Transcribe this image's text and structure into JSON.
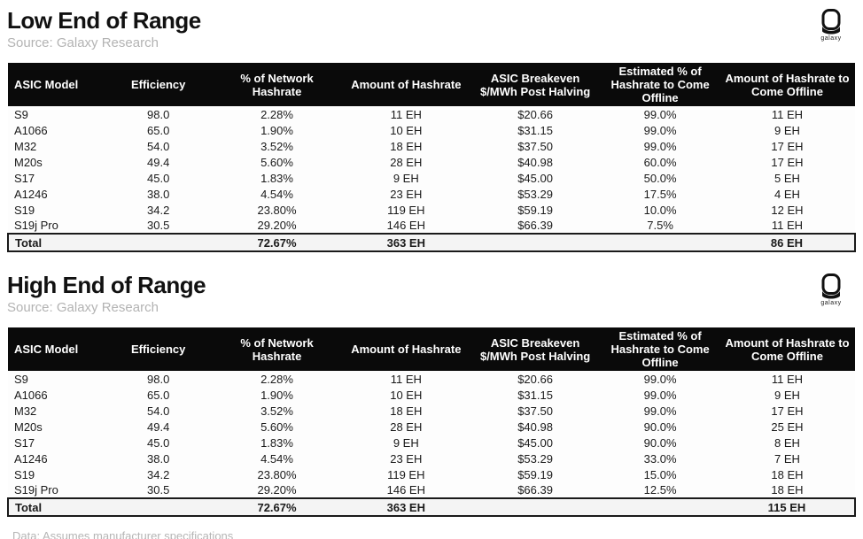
{
  "logo": {
    "icon": "astronaut-helmet-icon",
    "label": "galaxy"
  },
  "footer": {
    "note": "Data: Assumes manufacturer specifications"
  },
  "chart_data": [
    {
      "type": "table",
      "title": "Low End of Range",
      "source": "Source: Galaxy Research",
      "columns": [
        "ASIC Model",
        "Efficiency",
        "% of Network Hashrate",
        "Amount of Hashrate",
        "ASIC Breakeven $/MWh Post Halving",
        "Estimated % of Hashrate to Come Offline",
        "Amount of Hashrate to Come Offline"
      ],
      "rows": [
        [
          "S9",
          "98.0",
          "2.28%",
          "11 EH",
          "$20.66",
          "99.0%",
          "11 EH"
        ],
        [
          "A1066",
          "65.0",
          "1.90%",
          "10 EH",
          "$31.15",
          "99.0%",
          "9 EH"
        ],
        [
          "M32",
          "54.0",
          "3.52%",
          "18 EH",
          "$37.50",
          "99.0%",
          "17 EH"
        ],
        [
          "M20s",
          "49.4",
          "5.60%",
          "28 EH",
          "$40.98",
          "60.0%",
          "17 EH"
        ],
        [
          "S17",
          "45.0",
          "1.83%",
          "9 EH",
          "$45.00",
          "50.0%",
          "5 EH"
        ],
        [
          "A1246",
          "38.0",
          "4.54%",
          "23 EH",
          "$53.29",
          "17.5%",
          "4 EH"
        ],
        [
          "S19",
          "34.2",
          "23.80%",
          "119 EH",
          "$59.19",
          "10.0%",
          "12 EH"
        ],
        [
          "S19j Pro",
          "30.5",
          "29.20%",
          "146 EH",
          "$66.39",
          "7.5%",
          "11 EH"
        ]
      ],
      "total_row": [
        "Total",
        "",
        "72.67%",
        "363 EH",
        "",
        "",
        "86 EH"
      ]
    },
    {
      "type": "table",
      "title": "High End of Range",
      "source": "Source: Galaxy Research",
      "columns": [
        "ASIC Model",
        "Efficiency",
        "% of Network Hashrate",
        "Amount of Hashrate",
        "ASIC Breakeven $/MWh Post Halving",
        "Estimated % of Hashrate to Come Offline",
        "Amount of Hashrate to Come Offline"
      ],
      "rows": [
        [
          "S9",
          "98.0",
          "2.28%",
          "11 EH",
          "$20.66",
          "99.0%",
          "11 EH"
        ],
        [
          "A1066",
          "65.0",
          "1.90%",
          "10 EH",
          "$31.15",
          "99.0%",
          "9 EH"
        ],
        [
          "M32",
          "54.0",
          "3.52%",
          "18 EH",
          "$37.50",
          "99.0%",
          "17 EH"
        ],
        [
          "M20s",
          "49.4",
          "5.60%",
          "28 EH",
          "$40.98",
          "90.0%",
          "25 EH"
        ],
        [
          "S17",
          "45.0",
          "1.83%",
          "9 EH",
          "$45.00",
          "90.0%",
          "8 EH"
        ],
        [
          "A1246",
          "38.0",
          "4.54%",
          "23 EH",
          "$53.29",
          "33.0%",
          "7 EH"
        ],
        [
          "S19",
          "34.2",
          "23.80%",
          "119 EH",
          "$59.19",
          "15.0%",
          "18 EH"
        ],
        [
          "S19j Pro",
          "30.5",
          "29.20%",
          "146 EH",
          "$66.39",
          "12.5%",
          "18 EH"
        ]
      ],
      "total_row": [
        "Total",
        "",
        "72.67%",
        "363 EH",
        "",
        "",
        "115 EH"
      ]
    }
  ]
}
